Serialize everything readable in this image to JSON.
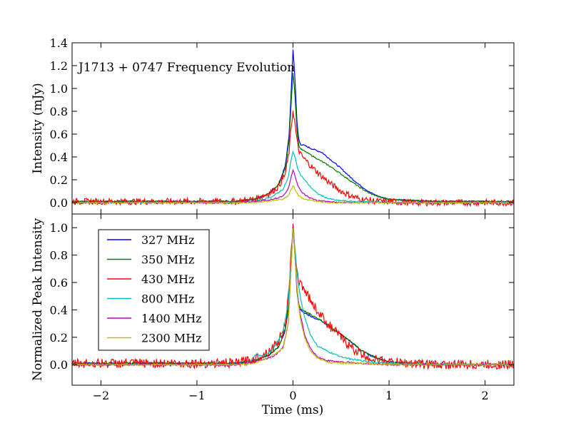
{
  "chart_data": [
    {
      "type": "line",
      "panel": "top",
      "title": "J1713 + 0747 Frequency Evolution",
      "xlabel": "",
      "ylabel": "Intensity (mJy)",
      "xlim": [
        -2.3,
        2.3
      ],
      "ylim": [
        -0.1,
        1.4
      ],
      "yticks": [
        0.0,
        0.2,
        0.4,
        0.6,
        0.8,
        1.0,
        1.2,
        1.4
      ],
      "ytick_labels": [
        "0.0",
        "0.2",
        "0.4",
        "0.6",
        "0.8",
        "1.0",
        "1.2",
        "1.4"
      ],
      "xticks": [
        -2,
        -1,
        0,
        1,
        2
      ],
      "grid": false,
      "series": [
        {
          "name": "327 MHz",
          "color": "#0000ff",
          "values_x": [
            -2.3,
            -0.6,
            -0.4,
            -0.25,
            -0.15,
            -0.08,
            -0.04,
            -0.02,
            0.0,
            0.02,
            0.04,
            0.06,
            0.08,
            0.12,
            0.2,
            0.3,
            0.4,
            0.5,
            0.6,
            0.7,
            0.8,
            0.9,
            1.0,
            1.2,
            1.5,
            2.3
          ],
          "values_y": [
            0.01,
            0.01,
            0.03,
            0.08,
            0.16,
            0.32,
            0.6,
            0.95,
            1.34,
            1.1,
            0.72,
            0.55,
            0.51,
            0.5,
            0.47,
            0.44,
            0.37,
            0.3,
            0.22,
            0.15,
            0.09,
            0.05,
            0.03,
            0.02,
            0.01,
            0.01
          ]
        },
        {
          "name": "350 MHz",
          "color": "#008000",
          "values_x": [
            -2.3,
            -0.6,
            -0.4,
            -0.25,
            -0.15,
            -0.08,
            -0.04,
            -0.02,
            0.0,
            0.02,
            0.04,
            0.06,
            0.08,
            0.12,
            0.2,
            0.3,
            0.4,
            0.5,
            0.6,
            0.7,
            0.8,
            0.9,
            1.0,
            1.2,
            1.5,
            2.3
          ],
          "values_y": [
            0.01,
            0.01,
            0.03,
            0.08,
            0.15,
            0.3,
            0.55,
            0.85,
            1.14,
            0.95,
            0.65,
            0.5,
            0.47,
            0.45,
            0.41,
            0.36,
            0.31,
            0.25,
            0.19,
            0.13,
            0.08,
            0.05,
            0.03,
            0.02,
            0.01,
            0.01
          ]
        },
        {
          "name": "430 MHz",
          "color": "#ff0000",
          "noise": 0.02,
          "values_x": [
            -2.3,
            -0.6,
            -0.4,
            -0.25,
            -0.15,
            -0.08,
            -0.04,
            -0.02,
            0.0,
            0.02,
            0.04,
            0.06,
            0.08,
            0.12,
            0.2,
            0.3,
            0.4,
            0.5,
            0.6,
            0.7,
            0.8,
            0.9,
            1.0,
            1.2,
            1.5,
            2.3
          ],
          "values_y": [
            0.01,
            0.01,
            0.03,
            0.08,
            0.14,
            0.25,
            0.45,
            0.65,
            0.81,
            0.7,
            0.55,
            0.46,
            0.42,
            0.38,
            0.31,
            0.23,
            0.16,
            0.1,
            0.06,
            0.03,
            0.02,
            0.01,
            0.01,
            0.0,
            0.0,
            0.0
          ]
        },
        {
          "name": "800 MHz",
          "color": "#00bfbf",
          "values_x": [
            -2.3,
            -0.6,
            -0.4,
            -0.3,
            -0.2,
            -0.1,
            -0.05,
            -0.02,
            0.0,
            0.02,
            0.05,
            0.08,
            0.12,
            0.18,
            0.25,
            0.35,
            0.45,
            0.6,
            0.8,
            1.0,
            2.3
          ],
          "values_y": [
            0.0,
            0.0,
            0.01,
            0.03,
            0.06,
            0.12,
            0.22,
            0.37,
            0.45,
            0.4,
            0.3,
            0.24,
            0.2,
            0.14,
            0.08,
            0.04,
            0.02,
            0.01,
            0.01,
            0.0,
            0.0
          ]
        },
        {
          "name": "1400 MHz",
          "color": "#bf00bf",
          "values_x": [
            -2.3,
            -0.6,
            -0.4,
            -0.3,
            -0.2,
            -0.1,
            -0.05,
            -0.02,
            0.0,
            0.02,
            0.05,
            0.08,
            0.12,
            0.18,
            0.25,
            0.35,
            0.5,
            0.7,
            1.0,
            2.3
          ],
          "values_y": [
            0.0,
            0.0,
            0.01,
            0.02,
            0.03,
            0.06,
            0.12,
            0.22,
            0.29,
            0.24,
            0.15,
            0.1,
            0.07,
            0.04,
            0.02,
            0.01,
            0.0,
            0.0,
            0.0,
            0.0
          ]
        },
        {
          "name": "2300 MHz",
          "color": "#bfbf00",
          "values_x": [
            -2.3,
            -0.6,
            -0.4,
            -0.3,
            -0.2,
            -0.1,
            -0.05,
            -0.02,
            0.0,
            0.02,
            0.05,
            0.08,
            0.12,
            0.18,
            0.25,
            0.35,
            0.5,
            0.7,
            1.0,
            2.3
          ],
          "values_y": [
            0.0,
            0.0,
            0.0,
            0.01,
            0.02,
            0.03,
            0.06,
            0.11,
            0.15,
            0.12,
            0.07,
            0.05,
            0.03,
            0.02,
            0.01,
            0.0,
            0.0,
            0.0,
            0.0,
            0.0
          ]
        }
      ]
    },
    {
      "type": "line",
      "panel": "bottom",
      "xlabel": "Time (ms)",
      "ylabel": "Normalized Peak Intensity",
      "xlim": [
        -2.3,
        2.3
      ],
      "ylim": [
        -0.15,
        1.1
      ],
      "xticks": [
        -2,
        -1,
        0,
        1,
        2
      ],
      "xtick_labels": [
        "−2",
        "−1",
        "0",
        "1",
        "2"
      ],
      "yticks": [
        0.0,
        0.2,
        0.4,
        0.6,
        0.8,
        1.0
      ],
      "ytick_labels": [
        "0.0",
        "0.2",
        "0.4",
        "0.6",
        "0.8",
        "1.0"
      ],
      "grid": false,
      "legend": {
        "placement": "lower-left",
        "entries": [
          "327 MHz",
          "350 MHz",
          "430 MHz",
          "800 MHz",
          "1400 MHz",
          "2300 MHz"
        ]
      },
      "series": [
        {
          "name": "327 MHz",
          "color": "#0000ff",
          "values_x": [
            -2.3,
            -0.6,
            -0.4,
            -0.25,
            -0.15,
            -0.08,
            -0.04,
            -0.02,
            0.0,
            0.02,
            0.04,
            0.06,
            0.08,
            0.12,
            0.2,
            0.3,
            0.4,
            0.5,
            0.6,
            0.7,
            0.8,
            0.9,
            1.0,
            1.2,
            1.5,
            2.3
          ],
          "values_y": [
            0.01,
            0.01,
            0.03,
            0.07,
            0.13,
            0.25,
            0.45,
            0.72,
            1.0,
            0.8,
            0.55,
            0.42,
            0.4,
            0.38,
            0.35,
            0.32,
            0.27,
            0.22,
            0.17,
            0.11,
            0.07,
            0.04,
            0.02,
            0.01,
            0.0,
            0.0
          ]
        },
        {
          "name": "350 MHz",
          "color": "#008000",
          "values_x": [
            -2.3,
            -0.6,
            -0.4,
            -0.25,
            -0.15,
            -0.08,
            -0.04,
            -0.02,
            0.0,
            0.02,
            0.04,
            0.06,
            0.08,
            0.12,
            0.2,
            0.3,
            0.4,
            0.5,
            0.6,
            0.7,
            0.8,
            0.9,
            1.0,
            1.2,
            1.5,
            2.3
          ],
          "values_y": [
            0.01,
            0.01,
            0.03,
            0.07,
            0.13,
            0.26,
            0.48,
            0.75,
            1.0,
            0.82,
            0.57,
            0.44,
            0.41,
            0.39,
            0.36,
            0.32,
            0.27,
            0.22,
            0.17,
            0.11,
            0.07,
            0.04,
            0.02,
            0.01,
            0.0,
            0.0
          ]
        },
        {
          "name": "430 MHz",
          "color": "#ff0000",
          "noise": 0.025,
          "values_x": [
            -2.3,
            -0.6,
            -0.4,
            -0.25,
            -0.15,
            -0.08,
            -0.04,
            -0.02,
            0.0,
            0.02,
            0.04,
            0.06,
            0.08,
            0.12,
            0.2,
            0.3,
            0.4,
            0.5,
            0.6,
            0.7,
            0.8,
            0.9,
            1.0,
            1.2,
            1.5,
            2.3
          ],
          "values_y": [
            0.01,
            0.01,
            0.04,
            0.1,
            0.17,
            0.3,
            0.55,
            0.8,
            1.0,
            0.85,
            0.68,
            0.6,
            0.6,
            0.55,
            0.45,
            0.35,
            0.27,
            0.2,
            0.13,
            0.08,
            0.05,
            0.03,
            0.02,
            0.01,
            0.0,
            0.0
          ]
        },
        {
          "name": "800 MHz",
          "color": "#00bfbf",
          "values_x": [
            -2.3,
            -0.6,
            -0.45,
            -0.38,
            -0.3,
            -0.2,
            -0.1,
            -0.05,
            -0.02,
            0.0,
            0.02,
            0.05,
            0.08,
            0.12,
            0.18,
            0.25,
            0.35,
            0.45,
            0.6,
            0.8,
            1.0,
            2.3
          ],
          "values_y": [
            0.0,
            0.0,
            0.02,
            0.08,
            0.06,
            0.12,
            0.25,
            0.45,
            0.75,
            1.0,
            0.85,
            0.62,
            0.48,
            0.35,
            0.22,
            0.14,
            0.1,
            0.07,
            0.04,
            0.02,
            0.01,
            0.0
          ]
        },
        {
          "name": "1400 MHz",
          "color": "#bf00bf",
          "values_x": [
            -2.3,
            -0.6,
            -0.4,
            -0.3,
            -0.2,
            -0.1,
            -0.05,
            -0.02,
            0.0,
            0.02,
            0.05,
            0.08,
            0.12,
            0.18,
            0.25,
            0.35,
            0.5,
            0.7,
            1.0,
            2.3
          ],
          "values_y": [
            0.0,
            0.0,
            0.02,
            0.04,
            0.06,
            0.13,
            0.3,
            0.7,
            1.0,
            0.8,
            0.5,
            0.35,
            0.22,
            0.12,
            0.06,
            0.03,
            0.02,
            0.01,
            0.0,
            0.0
          ]
        },
        {
          "name": "2300 MHz",
          "color": "#bfbf00",
          "values_x": [
            -2.3,
            -0.6,
            -0.4,
            -0.3,
            -0.2,
            -0.1,
            -0.05,
            -0.02,
            0.0,
            0.02,
            0.05,
            0.08,
            0.12,
            0.18,
            0.25,
            0.35,
            0.5,
            0.7,
            1.0,
            2.3
          ],
          "values_y": [
            0.0,
            0.0,
            0.01,
            0.04,
            0.07,
            0.12,
            0.3,
            0.7,
            1.0,
            0.78,
            0.48,
            0.32,
            0.2,
            0.1,
            0.05,
            0.02,
            0.01,
            0.01,
            0.0,
            0.0
          ]
        }
      ]
    }
  ]
}
